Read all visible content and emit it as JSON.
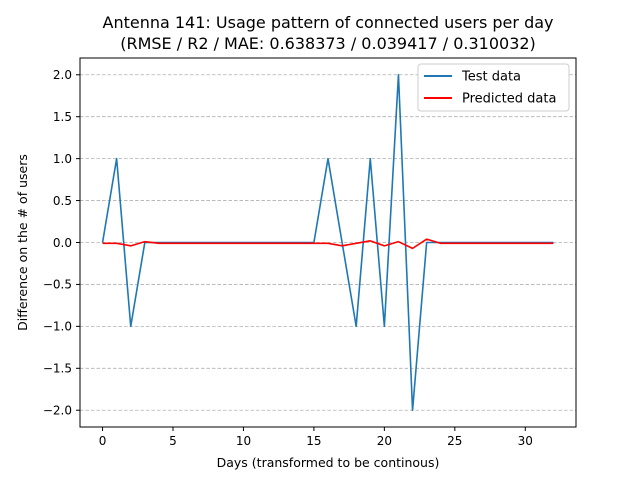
{
  "chart_data": {
    "type": "line",
    "title_line1": "Antenna 141: Usage pattern of connected users per day",
    "title_line2": "(RMSE / R2 / MAE: 0.638373 / 0.039417 / 0.310032)",
    "xlabel": "Days (transformed to be continous)",
    "ylabel": "Difference on the # of users",
    "xlim": [
      -1.6,
      33.6
    ],
    "ylim": [
      -2.2,
      2.2
    ],
    "xticks": [
      0,
      5,
      10,
      15,
      20,
      25,
      30
    ],
    "xtick_labels": [
      "0",
      "5",
      "10",
      "15",
      "20",
      "25",
      "30"
    ],
    "yticks": [
      2.0,
      1.5,
      1.0,
      0.5,
      0.0,
      -0.5,
      -1.0,
      -1.5,
      -2.0
    ],
    "ytick_labels": [
      "2.0",
      "1.5",
      "1.0",
      "0.5",
      "0.0",
      "−0.5",
      "−1.0",
      "−1.5",
      "−2.0"
    ],
    "grid": "horizontal dashed",
    "legend_position": "top-right",
    "x": [
      0,
      1,
      2,
      3,
      4,
      5,
      6,
      7,
      8,
      9,
      10,
      11,
      12,
      13,
      14,
      15,
      16,
      17,
      18,
      19,
      20,
      21,
      22,
      23,
      24,
      25,
      26,
      27,
      28,
      29,
      30,
      31,
      32
    ],
    "series": [
      {
        "name": "Test data",
        "color": "#1f77b4",
        "values": [
          0,
          1,
          -1,
          0,
          0,
          0,
          0,
          0,
          0,
          0,
          0,
          0,
          0,
          0,
          0,
          0,
          1,
          0,
          -1,
          1,
          -1,
          2,
          -2,
          0,
          0,
          0,
          0,
          0,
          0,
          0,
          0,
          0,
          0
        ]
      },
      {
        "name": "Predicted data",
        "color": "#ff0000",
        "values": [
          -0.01,
          -0.01,
          -0.04,
          0.01,
          -0.01,
          -0.01,
          -0.01,
          -0.01,
          -0.01,
          -0.01,
          -0.01,
          -0.01,
          -0.01,
          -0.01,
          -0.01,
          -0.01,
          -0.01,
          -0.04,
          -0.01,
          0.02,
          -0.04,
          0.01,
          -0.07,
          0.04,
          -0.01,
          -0.01,
          -0.01,
          -0.01,
          -0.01,
          -0.01,
          -0.01,
          -0.01,
          -0.01
        ]
      }
    ]
  }
}
